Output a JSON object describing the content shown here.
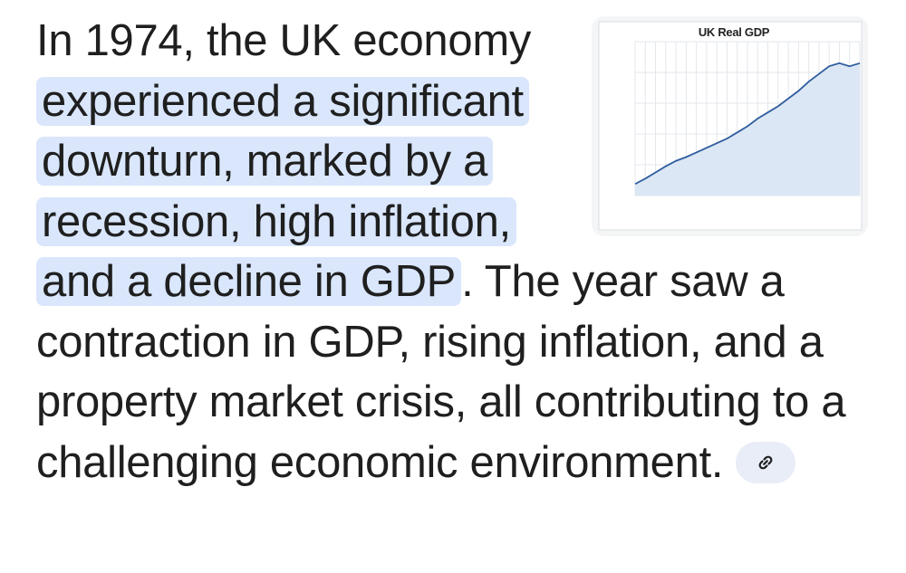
{
  "answer": {
    "intro": "In 1974, the UK economy ",
    "highlight": "experienced a significant downturn, marked by a recession, high inflation, and a decline in GDP",
    "rest": ". The year saw a contraction in GDP, rising inflation, and a property market crisis, all contributing to a challenging economic environment."
  },
  "source_link": {
    "icon": "link-icon"
  },
  "thumbnail": {
    "chart_data": {
      "type": "area",
      "title": "UK Real GDP",
      "x": [
        0,
        3,
        6,
        9,
        12,
        15,
        18,
        21,
        24,
        27,
        30,
        33,
        36,
        39,
        42,
        45,
        48,
        51,
        54,
        57,
        60,
        63,
        66
      ],
      "series": [
        {
          "values": [
            105,
            112,
            120,
            128,
            135,
            140,
            146,
            152,
            158,
            164,
            172,
            180,
            190,
            198,
            206,
            216,
            226,
            238,
            248,
            258,
            262,
            258,
            262
          ]
        }
      ],
      "ylim": [
        90,
        290
      ],
      "grid": true,
      "colors": {
        "line": "#2f5d9e",
        "fill": "#dbe7f4"
      }
    }
  }
}
